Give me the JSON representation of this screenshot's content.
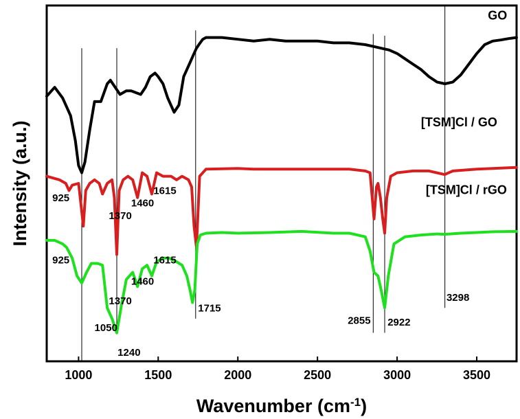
{
  "chart_data": {
    "type": "line",
    "title": "",
    "xlabel": "Wavenumber (cm",
    "xlabel_sup": "-1",
    "xlabel_close": ")",
    "ylabel": "Intensity (a.u.)",
    "xlim": [
      800,
      3750
    ],
    "ylim": [
      0,
      100
    ],
    "x_ticks": [
      "1000",
      "1500",
      "2000",
      "2500",
      "3000",
      "3500"
    ],
    "grid": false,
    "colors": {
      "GO": "#000000",
      "[TSM]Cl / GO": "#d81f1f",
      "[TSM]Cl / rGO": "#1fe01f",
      "guides": "#000000"
    },
    "series": [
      {
        "name": "GO",
        "x": [
          800,
          850,
          900,
          950,
          980,
          1000,
          1020,
          1040,
          1070,
          1100,
          1140,
          1180,
          1200,
          1230,
          1260,
          1300,
          1330,
          1360,
          1390,
          1420,
          1450,
          1480,
          1500,
          1530,
          1560,
          1600,
          1630,
          1660,
          1700,
          1720,
          1740,
          1760,
          1780,
          1800,
          1850,
          1900,
          2000,
          2100,
          2200,
          2300,
          2400,
          2500,
          2600,
          2700,
          2800,
          2850,
          2900,
          2950,
          3000,
          3050,
          3100,
          3150,
          3200,
          3250,
          3300,
          3350,
          3400,
          3450,
          3500,
          3550,
          3600,
          3650,
          3700,
          3750
        ],
        "y": [
          74.5,
          77,
          74,
          69,
          62,
          55,
          53,
          56,
          65,
          73,
          73,
          78,
          79,
          77,
          75,
          76,
          76,
          75.5,
          75,
          77,
          80,
          81,
          80,
          78,
          74,
          70,
          72,
          80,
          84,
          86,
          88,
          89.3,
          90.5,
          91,
          91,
          91,
          90.5,
          90,
          90.5,
          90,
          90,
          90,
          89.5,
          89.5,
          89,
          88.5,
          88,
          87.5,
          86.5,
          85,
          83.5,
          82,
          80,
          78.5,
          78,
          78.5,
          80.5,
          83.5,
          86.5,
          89,
          90,
          90.3,
          90.7,
          91
        ]
      },
      {
        "name": "[TSM]Cl / GO",
        "x": [
          800,
          880,
          920,
          940,
          960,
          1000,
          1015,
          1030,
          1045,
          1070,
          1100,
          1130,
          1150,
          1180,
          1210,
          1225,
          1240,
          1255,
          1280,
          1310,
          1340,
          1370,
          1400,
          1430,
          1460,
          1490,
          1530,
          1580,
          1615,
          1650,
          1690,
          1710,
          1725,
          1740,
          1760,
          1800,
          2000,
          2100,
          2500,
          2700,
          2800,
          2830,
          2855,
          2870,
          2880,
          2895,
          2910,
          2922,
          2935,
          2960,
          3000,
          3100,
          3200,
          3298,
          3350,
          3500,
          3750
        ],
        "y": [
          52,
          51,
          50,
          48,
          49.5,
          50,
          44,
          38,
          48,
          50,
          51,
          50,
          47,
          50,
          51,
          46,
          30,
          48,
          51,
          52,
          51,
          46,
          53,
          52,
          47,
          53,
          52,
          52,
          51,
          52,
          51,
          49,
          38,
          32,
          52,
          54,
          54.2,
          54,
          54,
          54,
          53.5,
          53,
          40,
          49,
          50,
          46,
          40,
          36,
          46,
          52,
          53,
          53.5,
          53.5,
          52.5,
          53.5,
          54,
          54.5
        ]
      },
      {
        "name": "[TSM]Cl / rGO",
        "x": [
          800,
          850,
          900,
          925,
          960,
          990,
          1020,
          1050,
          1080,
          1120,
          1150,
          1180,
          1210,
          1240,
          1270,
          1300,
          1340,
          1370,
          1400,
          1430,
          1460,
          1490,
          1530,
          1570,
          1615,
          1650,
          1680,
          1700,
          1715,
          1730,
          1745,
          1765,
          1800,
          1900,
          2000,
          2200,
          2400,
          2600,
          2700,
          2800,
          2830,
          2855,
          2880,
          2900,
          2922,
          2945,
          2980,
          3050,
          3150,
          3250,
          3298,
          3400,
          3500,
          3600,
          3750
        ],
        "y": [
          34,
          34,
          33,
          32,
          29,
          24,
          22,
          25,
          27.5,
          27.5,
          27,
          15,
          12,
          8,
          16,
          23,
          25,
          21,
          26,
          27,
          24,
          28,
          29,
          29,
          28,
          27,
          24,
          20,
          16.5,
          20,
          33,
          35.5,
          36,
          36.2,
          36,
          36.2,
          36.5,
          36,
          36,
          35,
          31,
          25,
          24,
          20,
          15,
          24,
          33,
          35,
          35.5,
          35.8,
          35.7,
          36,
          36.2,
          36.4,
          36.5
        ]
      }
    ],
    "vertical_guides": [
      {
        "x": 1020,
        "y_top": 88,
        "y_bottom": 0
      },
      {
        "x": 1240,
        "y_top": 88,
        "y_bottom": 8
      },
      {
        "x": 1735,
        "y_top": 93,
        "y_bottom": 12
      },
      {
        "x": 2850,
        "y_top": 92,
        "y_bottom": 8
      },
      {
        "x": 2922,
        "y_top": 91.5,
        "y_bottom": 8
      },
      {
        "x": 3300,
        "y_top": 100,
        "y_bottom": 15
      }
    ],
    "series_labels": [
      {
        "text": "GO",
        "x": 3570,
        "y": 96
      },
      {
        "text": "[TSM]Cl / GO",
        "x": 3150,
        "y": 66
      },
      {
        "text": "[TSM]Cl / rGO",
        "x": 3180,
        "y": 47
      }
    ],
    "annotations": [
      {
        "text": "925",
        "x": 835,
        "y": 45
      },
      {
        "text": "1370",
        "x": 1190,
        "y": 40
      },
      {
        "text": "1460",
        "x": 1330,
        "y": 43.5
      },
      {
        "text": "1615",
        "x": 1470,
        "y": 47
      },
      {
        "text": "925",
        "x": 835,
        "y": 27.5
      },
      {
        "text": "1050",
        "x": 1100,
        "y": 8.5
      },
      {
        "text": "1370",
        "x": 1190,
        "y": 16
      },
      {
        "text": "1460",
        "x": 1330,
        "y": 21.5
      },
      {
        "text": "1615",
        "x": 1470,
        "y": 27.5
      },
      {
        "text": "1715",
        "x": 1750,
        "y": 14
      },
      {
        "text": "1240",
        "x": 1245,
        "y": 1.5
      },
      {
        "text": "2855",
        "x": 2690,
        "y": 10.5
      },
      {
        "text": "2922",
        "x": 2940,
        "y": 10
      },
      {
        "text": "3298",
        "x": 3310,
        "y": 17
      }
    ]
  }
}
